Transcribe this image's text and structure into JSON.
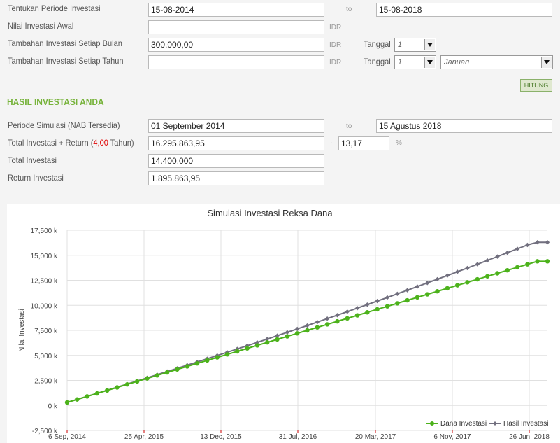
{
  "form": {
    "periode_label": "Tentukan Periode Investasi",
    "periode_start": "15-08-2014",
    "periode_to": "to",
    "periode_end": "15-08-2018",
    "awal_label": "Nilai Investasi Awal",
    "awal_value": "",
    "awal_unit": "IDR",
    "bulan_label": "Tambahan Investasi Setiap Bulan",
    "bulan_value": "300.000,00",
    "bulan_unit": "IDR",
    "bulan_tanggal_label": "Tanggal",
    "bulan_tanggal_value": "1",
    "tahun_label": "Tambahan Investasi Setiap Tahun",
    "tahun_value": "",
    "tahun_unit": "IDR",
    "tahun_tanggal_label": "Tanggal",
    "tahun_tanggal_value": "1",
    "tahun_bulan_value": "Januari",
    "hitung_label": "HITUNG"
  },
  "hasil": {
    "title": "HASIL INVESTASI ANDA",
    "simulasi_label": "Periode Simulasi (NAB Tersedia)",
    "simulasi_start": "01 September 2014",
    "simulasi_to": "to",
    "simulasi_end": "15 Agustus 2018",
    "total_return_label_a": "Total Investasi + Return (",
    "total_return_years": "4,00",
    "total_return_label_b": " Tahun)",
    "total_return_value": "16.295.863,95",
    "separator": ".",
    "return_pct": "13,17",
    "pct_sign": "%",
    "total_label": "Total Investasi",
    "total_value": "14.400.000",
    "return_label": "Return Investasi",
    "return_value": "1.895.863,95"
  },
  "chart_data": {
    "type": "line",
    "title": "Simulasi Investasi Reksa Dana",
    "ylabel": "Nilai Investasi",
    "xlabel": "",
    "ylim": [
      -2500,
      17500
    ],
    "yticks": [
      -2500,
      0,
      2500,
      5000,
      7500,
      10000,
      12500,
      15000,
      17500
    ],
    "ytick_labels": [
      "-2,500 k",
      "0 k",
      "2,500 k",
      "5,000 k",
      "7,500 k",
      "10,000 k",
      "12,500 k",
      "15,000 k",
      "17,500 k"
    ],
    "xtick_labels": [
      "6 Sep, 2014",
      "25 Apr, 2015",
      "13 Dec, 2015",
      "31 Jul, 2016",
      "20 Mar, 2017",
      "6 Nov, 2017",
      "26 Jun, 2018"
    ],
    "grid": true,
    "legend": "bottom-right",
    "x": [
      1,
      2,
      3,
      4,
      5,
      6,
      7,
      8,
      9,
      10,
      11,
      12,
      13,
      14,
      15,
      16,
      17,
      18,
      19,
      20,
      21,
      22,
      23,
      24,
      25,
      26,
      27,
      28,
      29,
      30,
      31,
      32,
      33,
      34,
      35,
      36,
      37,
      38,
      39,
      40,
      41,
      42,
      43,
      44,
      45,
      46,
      47,
      48,
      49
    ],
    "series": [
      {
        "name": "Dana Investasi",
        "color": "#4cb21b",
        "values": [
          300,
          600,
          900,
          1200,
          1500,
          1800,
          2100,
          2400,
          2700,
          3000,
          3300,
          3600,
          3900,
          4200,
          4500,
          4800,
          5100,
          5400,
          5700,
          6000,
          6300,
          6600,
          6900,
          7200,
          7500,
          7800,
          8100,
          8400,
          8700,
          9000,
          9300,
          9600,
          9900,
          10200,
          10500,
          10800,
          11100,
          11400,
          11700,
          12000,
          12300,
          12600,
          12900,
          13200,
          13500,
          13800,
          14100,
          14400,
          14400
        ]
      },
      {
        "name": "Hasil Investasi",
        "color": "#716f7e",
        "values": [
          300,
          602,
          905,
          1210,
          1516,
          1824,
          2133,
          2444,
          2756,
          3070,
          3385,
          3702,
          4021,
          4341,
          4663,
          4987,
          5312,
          5640,
          5969,
          6300,
          6633,
          6968,
          7305,
          7644,
          7985,
          8328,
          8673,
          9020,
          9369,
          9720,
          10073,
          10428,
          10786,
          11146,
          11508,
          11872,
          12238,
          12607,
          12978,
          13351,
          13727,
          14105,
          14486,
          14869,
          15254,
          15642,
          16032,
          16296,
          16296
        ]
      }
    ]
  }
}
